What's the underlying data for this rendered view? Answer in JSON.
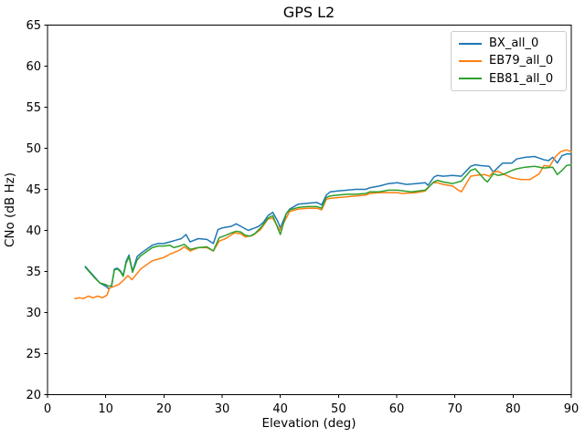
{
  "chart_data": {
    "type": "line",
    "title": "GPS L2",
    "xlabel": "Elevation (deg)",
    "ylabel": "CNo (dB Hz)",
    "xlim": [
      0,
      90
    ],
    "ylim": [
      20,
      65
    ],
    "xticks": [
      0,
      10,
      20,
      30,
      40,
      50,
      60,
      70,
      80,
      90
    ],
    "yticks": [
      20,
      25,
      30,
      35,
      40,
      45,
      50,
      55,
      60,
      65
    ],
    "grid": false,
    "legend_position": "upper right",
    "background_color": "#ffffff",
    "axis_color": "#000000",
    "series": [
      {
        "name": "BX_all_0",
        "color": "#1f77b4",
        "points": [
          [
            6.5,
            35.6
          ],
          [
            7,
            35.2
          ],
          [
            8,
            34.4
          ],
          [
            9,
            33.6
          ],
          [
            10,
            33.2
          ],
          [
            10.5,
            32.9
          ],
          [
            11,
            33.1
          ],
          [
            11.5,
            35.3
          ],
          [
            12,
            35.4
          ],
          [
            12.5,
            35.1
          ],
          [
            13,
            34.5
          ],
          [
            13.5,
            36.2
          ],
          [
            14,
            37.0
          ],
          [
            14.6,
            35.0
          ],
          [
            15.4,
            36.8
          ],
          [
            16,
            37.2
          ],
          [
            17,
            37.7
          ],
          [
            18,
            38.2
          ],
          [
            19,
            38.4
          ],
          [
            20,
            38.4
          ],
          [
            21,
            38.6
          ],
          [
            22,
            38.8
          ],
          [
            23,
            39.0
          ],
          [
            23.8,
            39.5
          ],
          [
            24.5,
            38.6
          ],
          [
            25.9,
            39.0
          ],
          [
            27.4,
            38.9
          ],
          [
            28.5,
            38.4
          ],
          [
            29.3,
            40.1
          ],
          [
            30,
            40.3
          ],
          [
            31.6,
            40.5
          ],
          [
            32.4,
            40.8
          ],
          [
            33.2,
            40.5
          ],
          [
            34.5,
            40.0
          ],
          [
            35.6,
            40.3
          ],
          [
            36.3,
            40.5
          ],
          [
            37.1,
            41.0
          ],
          [
            37.9,
            41.8
          ],
          [
            38.7,
            42.2
          ],
          [
            39.5,
            41.2
          ],
          [
            40,
            40.3
          ],
          [
            41,
            42.0
          ],
          [
            41.6,
            42.6
          ],
          [
            43.1,
            43.2
          ],
          [
            44.7,
            43.3
          ],
          [
            46.3,
            43.4
          ],
          [
            47.1,
            43.1
          ],
          [
            47.9,
            44.3
          ],
          [
            48.6,
            44.7
          ],
          [
            49.9,
            44.8
          ],
          [
            51.5,
            44.9
          ],
          [
            53,
            45.0
          ],
          [
            54.7,
            45.0
          ],
          [
            55.4,
            45.2
          ],
          [
            57,
            45.4
          ],
          [
            58.6,
            45.7
          ],
          [
            60.1,
            45.8
          ],
          [
            61.7,
            45.6
          ],
          [
            63.3,
            45.7
          ],
          [
            64.9,
            45.8
          ],
          [
            65.4,
            45.5
          ],
          [
            66.4,
            46.5
          ],
          [
            67,
            46.7
          ],
          [
            68,
            46.6
          ],
          [
            69.6,
            46.7
          ],
          [
            71.1,
            46.6
          ],
          [
            72.7,
            47.8
          ],
          [
            73.5,
            48.0
          ],
          [
            74.3,
            47.9
          ],
          [
            75.9,
            47.8
          ],
          [
            76.6,
            47.1
          ],
          [
            78.2,
            48.2
          ],
          [
            79.8,
            48.2
          ],
          [
            80.6,
            48.7
          ],
          [
            82.1,
            48.9
          ],
          [
            83.7,
            49.0
          ],
          [
            84.5,
            48.8
          ],
          [
            85.3,
            48.6
          ],
          [
            86.1,
            48.5
          ],
          [
            86.8,
            48.9
          ],
          [
            87.6,
            48.2
          ],
          [
            88.4,
            49.1
          ],
          [
            89.2,
            49.3
          ],
          [
            90,
            49.3
          ]
        ]
      },
      {
        "name": "EB79_all_0",
        "color": "#ff7f0e",
        "points": [
          [
            4.7,
            31.7
          ],
          [
            5.5,
            31.8
          ],
          [
            6.2,
            31.7
          ],
          [
            7,
            32.0
          ],
          [
            7.8,
            31.8
          ],
          [
            8.6,
            32.0
          ],
          [
            9.4,
            31.8
          ],
          [
            10.2,
            32.1
          ],
          [
            10.7,
            33.0
          ],
          [
            11.5,
            33.2
          ],
          [
            12.2,
            33.4
          ],
          [
            13,
            33.9
          ],
          [
            13.8,
            34.5
          ],
          [
            14.5,
            34.0
          ],
          [
            15.1,
            34.5
          ],
          [
            16,
            35.3
          ],
          [
            17,
            35.8
          ],
          [
            18,
            36.3
          ],
          [
            19,
            36.5
          ],
          [
            20,
            36.7
          ],
          [
            21,
            37.1
          ],
          [
            21.7,
            37.3
          ],
          [
            22.7,
            37.6
          ],
          [
            23.5,
            38.0
          ],
          [
            24.5,
            37.5
          ],
          [
            25.9,
            37.9
          ],
          [
            27.4,
            37.9
          ],
          [
            28.5,
            37.5
          ],
          [
            29.5,
            38.7
          ],
          [
            30.6,
            39.0
          ],
          [
            32.1,
            39.7
          ],
          [
            33.2,
            39.6
          ],
          [
            34,
            39.2
          ],
          [
            35.3,
            39.4
          ],
          [
            36.6,
            40.1
          ],
          [
            37.9,
            41.4
          ],
          [
            38.7,
            41.5
          ],
          [
            39.9,
            40.0
          ],
          [
            41.6,
            42.3
          ],
          [
            43.1,
            42.6
          ],
          [
            44.7,
            42.7
          ],
          [
            46.3,
            42.7
          ],
          [
            47.1,
            42.5
          ],
          [
            47.9,
            43.8
          ],
          [
            48.6,
            43.9
          ],
          [
            49.9,
            44.0
          ],
          [
            51.5,
            44.1
          ],
          [
            53,
            44.2
          ],
          [
            54.7,
            44.3
          ],
          [
            55.4,
            44.5
          ],
          [
            57,
            44.6
          ],
          [
            58.6,
            44.6
          ],
          [
            60.1,
            44.6
          ],
          [
            60.9,
            44.5
          ],
          [
            63.3,
            44.6
          ],
          [
            64.9,
            44.8
          ],
          [
            66.2,
            45.8
          ],
          [
            67,
            45.8
          ],
          [
            68,
            45.6
          ],
          [
            69.6,
            45.4
          ],
          [
            70.6,
            44.9
          ],
          [
            71.1,
            44.7
          ],
          [
            72.7,
            46.6
          ],
          [
            73.5,
            46.7
          ],
          [
            75.1,
            46.8
          ],
          [
            75.9,
            46.6
          ],
          [
            76.6,
            47.1
          ],
          [
            77.4,
            47.2
          ],
          [
            78.2,
            46.9
          ],
          [
            79.8,
            46.4
          ],
          [
            81.3,
            46.2
          ],
          [
            82.9,
            46.2
          ],
          [
            84.5,
            46.9
          ],
          [
            85.3,
            47.9
          ],
          [
            86.3,
            47.8
          ],
          [
            87.3,
            49.0
          ],
          [
            88.2,
            49.6
          ],
          [
            89.2,
            49.8
          ],
          [
            90,
            49.6
          ]
        ]
      },
      {
        "name": "EB81_all_0",
        "color": "#2ca02c",
        "points": [
          [
            6.5,
            35.5
          ],
          [
            7,
            35.1
          ],
          [
            8,
            34.3
          ],
          [
            9,
            33.6
          ],
          [
            10,
            33.4
          ],
          [
            10.5,
            33.2
          ],
          [
            11,
            33.3
          ],
          [
            11.5,
            35.2
          ],
          [
            12,
            35.3
          ],
          [
            12.5,
            35.0
          ],
          [
            13,
            34.4
          ],
          [
            13.5,
            36.0
          ],
          [
            14,
            36.8
          ],
          [
            14.6,
            34.9
          ],
          [
            15.4,
            36.4
          ],
          [
            16,
            36.9
          ],
          [
            17,
            37.4
          ],
          [
            18,
            37.9
          ],
          [
            19,
            38.1
          ],
          [
            20,
            38.1
          ],
          [
            21,
            38.2
          ],
          [
            21.7,
            37.9
          ],
          [
            22.7,
            38.1
          ],
          [
            23.5,
            38.3
          ],
          [
            24.5,
            37.7
          ],
          [
            25.9,
            37.9
          ],
          [
            27.4,
            38.0
          ],
          [
            28.5,
            37.5
          ],
          [
            29.5,
            39.1
          ],
          [
            30.6,
            39.4
          ],
          [
            31.6,
            39.7
          ],
          [
            32.4,
            39.9
          ],
          [
            33.2,
            39.8
          ],
          [
            34,
            39.4
          ],
          [
            34.8,
            39.3
          ],
          [
            35.6,
            39.6
          ],
          [
            36.6,
            40.3
          ],
          [
            37.9,
            41.5
          ],
          [
            38.7,
            41.8
          ],
          [
            40,
            39.5
          ],
          [
            41,
            42.0
          ],
          [
            41.6,
            42.5
          ],
          [
            43.1,
            42.8
          ],
          [
            44.7,
            42.9
          ],
          [
            46.3,
            42.9
          ],
          [
            47.1,
            42.7
          ],
          [
            47.9,
            44.0
          ],
          [
            48.6,
            44.2
          ],
          [
            49.9,
            44.3
          ],
          [
            51.5,
            44.4
          ],
          [
            53,
            44.4
          ],
          [
            54.7,
            44.5
          ],
          [
            55.4,
            44.7
          ],
          [
            57,
            44.7
          ],
          [
            58.6,
            44.9
          ],
          [
            60.1,
            44.9
          ],
          [
            62.5,
            44.7
          ],
          [
            64.9,
            44.9
          ],
          [
            66.4,
            45.9
          ],
          [
            67,
            46.1
          ],
          [
            68,
            45.9
          ],
          [
            69.6,
            45.7
          ],
          [
            71.1,
            46.0
          ],
          [
            72.7,
            47.3
          ],
          [
            73.5,
            47.5
          ],
          [
            75.1,
            46.2
          ],
          [
            75.6,
            45.9
          ],
          [
            76.6,
            46.9
          ],
          [
            77.4,
            46.7
          ],
          [
            78.2,
            46.8
          ],
          [
            79.8,
            47.3
          ],
          [
            80.6,
            47.5
          ],
          [
            82.1,
            47.7
          ],
          [
            83.7,
            47.8
          ],
          [
            84.5,
            47.7
          ],
          [
            85.3,
            47.6
          ],
          [
            86.8,
            47.7
          ],
          [
            87.6,
            46.8
          ],
          [
            88.4,
            47.3
          ],
          [
            89.2,
            47.9
          ],
          [
            90,
            48.0
          ]
        ]
      }
    ]
  }
}
